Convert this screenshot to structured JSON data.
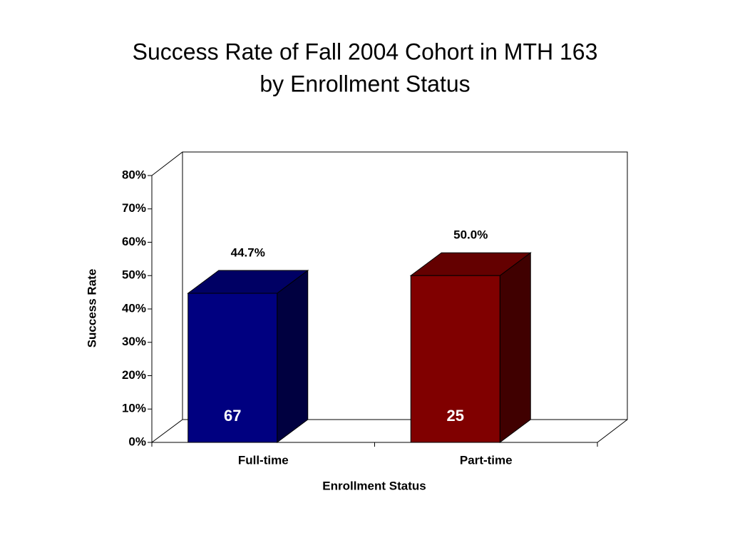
{
  "chart_data": {
    "type": "bar3d",
    "title": [
      "Success Rate of Fall 2004 Cohort in MTH 163",
      "by Enrollment Status"
    ],
    "x_label": "Enrollment Status",
    "y_label": "Success Rate",
    "categories": [
      "Full-time",
      "Part-time"
    ],
    "values": [
      44.7,
      50.0
    ],
    "value_labels": [
      "44.7%",
      "50.0%"
    ],
    "inner_labels": [
      67,
      25
    ],
    "colors": [
      "#000080",
      "#800000"
    ],
    "ylim": [
      0,
      80
    ],
    "yticks": [
      {
        "value": 0,
        "label": "0%"
      },
      {
        "value": 10,
        "label": "10%"
      },
      {
        "value": 20,
        "label": "20%"
      },
      {
        "value": 30,
        "label": "30%"
      },
      {
        "value": 40,
        "label": "40%"
      },
      {
        "value": 50,
        "label": "50%"
      },
      {
        "value": 60,
        "label": "60%"
      },
      {
        "value": 70,
        "label": "70%"
      },
      {
        "value": 80,
        "label": "80%"
      }
    ],
    "grid": false
  }
}
